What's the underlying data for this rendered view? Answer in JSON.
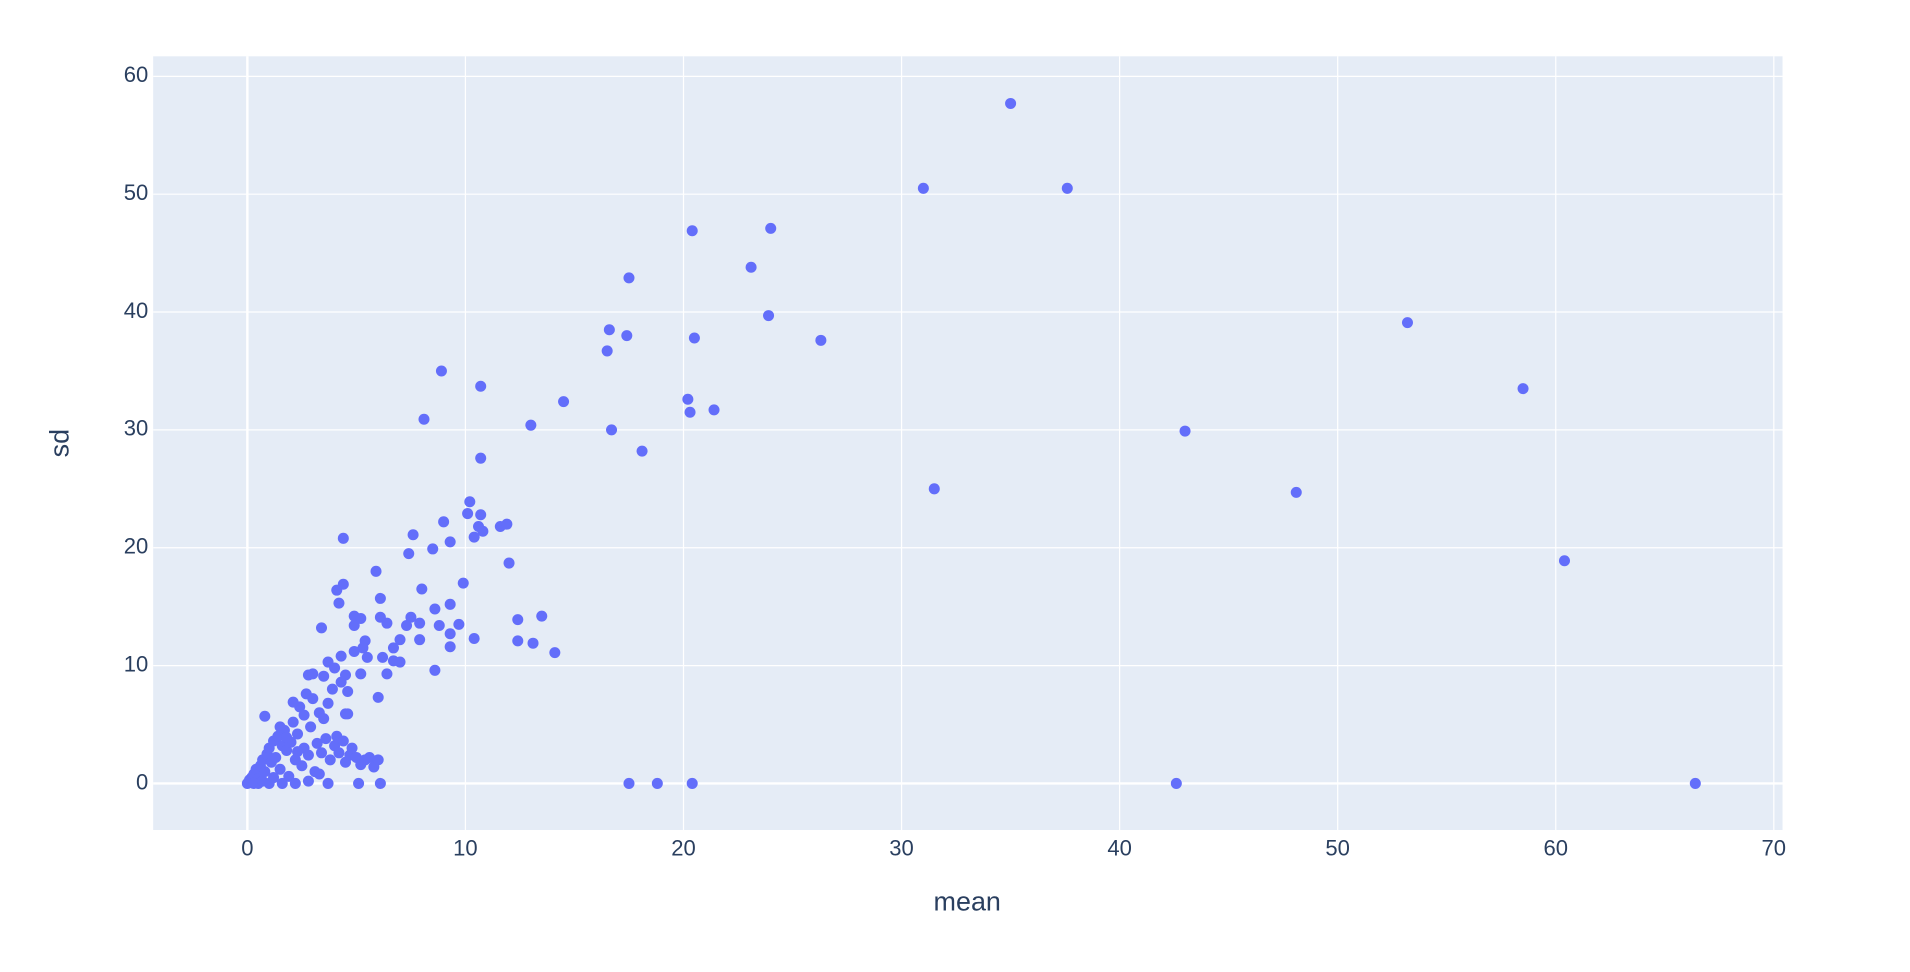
{
  "chart_data": {
    "type": "scatter",
    "x_label": "mean",
    "y_label": "sd",
    "color": "#636efa",
    "grid": true,
    "xlim": [
      -4.32,
      70.4
    ],
    "ylim": [
      -3.95,
      61.7
    ],
    "xticks": [
      0,
      10,
      20,
      30,
      40,
      50,
      60,
      70
    ],
    "yticks": [
      0,
      10,
      20,
      30,
      40,
      50,
      60
    ],
    "x": [
      35.0,
      31.0,
      37.6,
      20.4,
      24.0,
      23.1,
      17.5,
      8.9,
      16.6,
      17.4,
      20.5,
      23.9,
      26.3,
      53.2,
      58.5,
      16.5,
      10.7,
      14.5,
      20.2,
      20.3,
      21.4,
      8.1,
      13.0,
      16.7,
      43.0,
      18.1,
      10.7,
      31.5,
      48.1,
      10.2,
      10.1,
      10.7,
      9.0,
      10.6,
      11.6,
      11.9,
      10.8,
      7.6,
      4.4,
      9.3,
      10.4,
      8.5,
      7.4,
      60.4,
      12.0,
      5.9,
      9.9,
      4.4,
      4.1,
      8.0,
      6.1,
      4.2,
      9.3,
      8.6,
      4.9,
      5.2,
      6.1,
      7.5,
      7.9,
      7.3,
      8.8,
      9.7,
      3.4,
      6.4,
      4.9,
      13.5,
      12.4,
      9.3,
      10.4,
      7.0,
      7.9,
      12.4,
      13.1,
      14.1,
      9.3,
      5.4,
      5.3,
      6.7,
      4.9,
      6.7,
      7.0,
      6.2,
      5.5,
      4.3,
      3.7,
      4.0,
      8.6,
      6.4,
      5.2,
      4.5,
      2.8,
      3.5,
      6.0,
      0.8,
      4.5,
      17.5,
      18.8,
      20.4,
      42.6,
      66.4,
      5.1,
      6.1,
      3.7,
      0,
      0.1,
      0.2,
      0.3,
      0.4,
      0.5,
      0.6,
      0.7,
      0.8,
      0.9,
      1.0,
      1.0,
      1.1,
      1.2,
      1.3,
      1.4,
      1.5,
      1.6,
      1.7,
      1.8,
      1.9,
      2.0,
      2.1,
      2.2,
      2.3,
      2.4,
      2.5,
      2.6,
      2.7,
      2.8,
      2.9,
      3.0,
      3.1,
      3.2,
      3.3,
      3.4,
      3.5,
      3.6,
      3.7,
      3.8,
      3.9,
      4.0,
      4.1,
      4.2,
      4.3,
      4.4,
      4.5,
      4.6,
      4.7,
      4.8,
      5.0,
      5.2,
      5.4,
      5.6,
      5.8,
      6.0,
      2.2,
      1.6,
      0.5,
      2.8,
      3.3,
      1.2,
      0.3,
      0.7,
      2.6,
      2.1,
      3.0,
      1.8,
      1.5,
      2.3,
      4.6
    ],
    "y": [
      57.7,
      50.5,
      50.5,
      46.9,
      47.1,
      43.8,
      42.9,
      35.0,
      38.5,
      38.0,
      37.8,
      39.7,
      37.6,
      39.1,
      33.5,
      36.7,
      33.7,
      32.4,
      32.6,
      31.5,
      31.7,
      30.9,
      30.4,
      30.0,
      29.9,
      28.2,
      27.6,
      25.0,
      24.7,
      23.9,
      22.9,
      22.8,
      22.2,
      21.8,
      21.8,
      22.0,
      21.4,
      21.1,
      20.8,
      20.5,
      20.9,
      19.9,
      19.5,
      18.9,
      18.7,
      18.0,
      17.0,
      16.9,
      16.4,
      16.5,
      15.7,
      15.3,
      15.2,
      14.8,
      14.2,
      14.0,
      14.1,
      14.1,
      13.6,
      13.4,
      13.4,
      13.5,
      13.2,
      13.6,
      13.4,
      14.2,
      13.9,
      12.7,
      12.3,
      12.2,
      12.2,
      12.1,
      11.9,
      11.1,
      11.6,
      12.1,
      11.5,
      11.5,
      11.2,
      10.4,
      10.3,
      10.7,
      10.7,
      10.8,
      10.3,
      9.8,
      9.6,
      9.3,
      9.3,
      9.2,
      9.2,
      9.1,
      7.3,
      5.7,
      5.9,
      0,
      0,
      0,
      0,
      0,
      0,
      0,
      0,
      0,
      0.3,
      0.5,
      0.8,
      1.2,
      0.4,
      1.5,
      2.0,
      1.0,
      2.5,
      0,
      3.0,
      1.8,
      3.6,
      2.2,
      4.0,
      1.2,
      3.2,
      4.5,
      2.8,
      0.6,
      3.5,
      5.2,
      2.0,
      4.2,
      6.5,
      1.5,
      3.0,
      7.6,
      2.4,
      4.8,
      7.2,
      1.0,
      3.4,
      6.0,
      2.6,
      5.5,
      3.8,
      6.8,
      2.0,
      8.0,
      3.2,
      4.0,
      2.6,
      8.6,
      3.6,
      1.8,
      7.8,
      2.4,
      3.0,
      2.2,
      1.6,
      2.0,
      2.2,
      1.4,
      2.0,
      0,
      0,
      0,
      0.2,
      0.8,
      0.5,
      0,
      0.2,
      5.8,
      6.9,
      9.3,
      3.9,
      4.8,
      2.7,
      5.9
    ]
  }
}
